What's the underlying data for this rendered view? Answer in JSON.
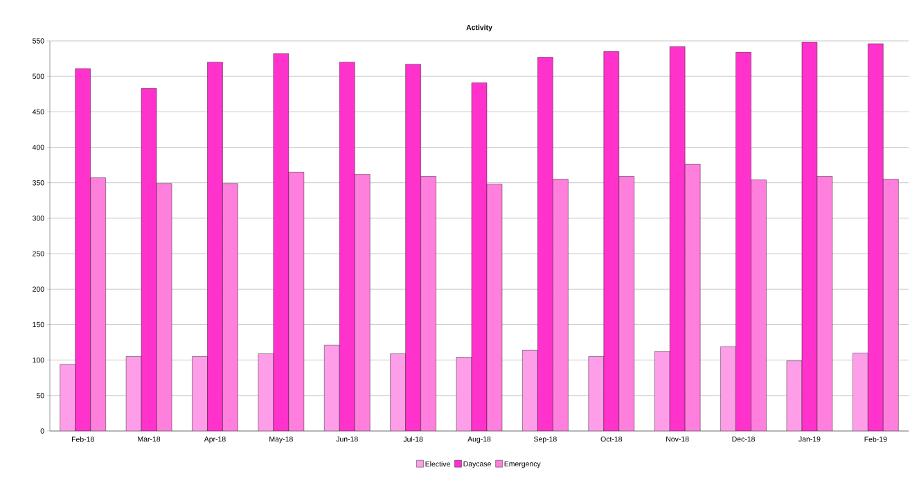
{
  "chart_data": {
    "type": "bar",
    "title": "Activity",
    "categories": [
      "Feb-18",
      "Mar-18",
      "Apr-18",
      "May-18",
      "Jun-18",
      "Jul-18",
      "Aug-18",
      "Sep-18",
      "Oct-18",
      "Nov-18",
      "Dec-18",
      "Jan-19",
      "Feb-19"
    ],
    "series": [
      {
        "name": "Elective",
        "color": "#ff9ee8",
        "values": [
          94,
          105,
          105,
          109,
          121,
          109,
          104,
          114,
          105,
          112,
          119,
          99,
          110
        ]
      },
      {
        "name": "Daycase",
        "color": "#ff33cc",
        "values": [
          511,
          483,
          520,
          532,
          520,
          517,
          491,
          527,
          535,
          542,
          534,
          548,
          546
        ]
      },
      {
        "name": "Emergency",
        "color": "#ff7fdd",
        "values": [
          357,
          349,
          349,
          365,
          362,
          359,
          348,
          355,
          359,
          376,
          354,
          359,
          355
        ]
      }
    ],
    "ylim": [
      0,
      550
    ],
    "yticks": [
      0,
      50,
      100,
      150,
      200,
      250,
      300,
      350,
      400,
      450,
      500,
      550
    ],
    "grid": "y",
    "legend": "bottom"
  }
}
